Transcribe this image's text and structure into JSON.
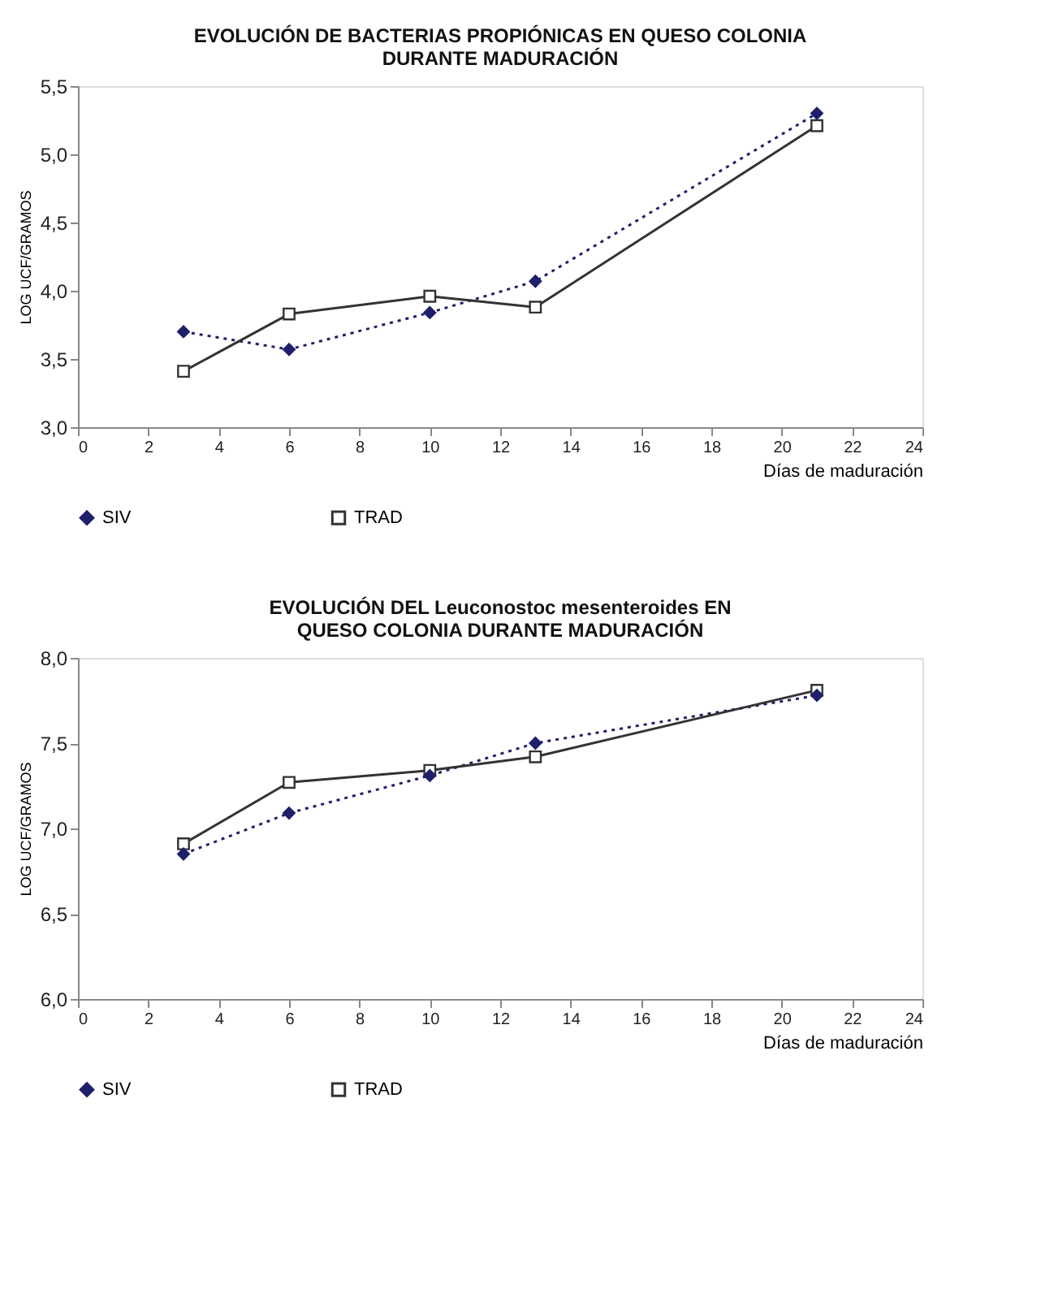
{
  "chart_data": [
    {
      "type": "line",
      "title": "EVOLUCIÓN DE BACTERIAS PROPIÓNICAS EN QUESO COLONIA\nDURANTE MADURACIÓN",
      "xlabel": "Días de maduración",
      "ylabel": "LOG UCF/GRAMOS",
      "x": [
        3,
        6,
        10,
        13,
        21
      ],
      "series": [
        {
          "name": "SIV",
          "color": "#1f1f6b",
          "values": [
            3.7,
            3.57,
            3.84,
            4.07,
            5.3
          ],
          "marker": "diamond",
          "line_style": "dotted"
        },
        {
          "name": "TRAD",
          "color": "#333333",
          "values": [
            3.41,
            3.83,
            3.96,
            3.88,
            5.21
          ],
          "marker": "square",
          "line_style": "solid"
        }
      ],
      "xlim": [
        0,
        24
      ],
      "xticks": [
        0,
        2,
        4,
        6,
        8,
        10,
        12,
        14,
        16,
        18,
        20,
        22,
        24
      ],
      "ylim": [
        3.0,
        5.5
      ],
      "yticks": [
        {
          "value": 3.0,
          "label": "3,0"
        },
        {
          "value": 3.5,
          "label": "3,5"
        },
        {
          "value": 4.0,
          "label": "4,0"
        },
        {
          "value": 4.5,
          "label": "4,5"
        },
        {
          "value": 5.0,
          "label": "5,0"
        },
        {
          "value": 5.5,
          "label": "5,5"
        }
      ],
      "grid": false,
      "legend": "bottom"
    },
    {
      "type": "line",
      "title": "EVOLUCIÓN DEL Leuconostoc mesenteroides EN\nQUESO COLONIA DURANTE MADURACIÓN",
      "xlabel": "Días de maduración",
      "ylabel": "LOG UCF/GRAMOS",
      "x": [
        3,
        6,
        10,
        13,
        21
      ],
      "series": [
        {
          "name": "SIV",
          "color": "#1f1f6b",
          "values": [
            6.85,
            7.09,
            7.31,
            7.5,
            7.78
          ],
          "marker": "diamond",
          "line_style": "dotted"
        },
        {
          "name": "TRAD",
          "color": "#333333",
          "values": [
            6.91,
            7.27,
            7.34,
            7.42,
            7.81
          ],
          "marker": "square",
          "line_style": "solid"
        }
      ],
      "xlim": [
        0,
        24
      ],
      "xticks": [
        0,
        2,
        4,
        6,
        8,
        10,
        12,
        14,
        16,
        18,
        20,
        22,
        24
      ],
      "ylim": [
        6.0,
        8.0
      ],
      "yticks": [
        {
          "value": 6.0,
          "label": "6,0"
        },
        {
          "value": 6.5,
          "label": "6,5"
        },
        {
          "value": 7.0,
          "label": "7,0"
        },
        {
          "value": 7.5,
          "label": "7,5"
        },
        {
          "value": 8.0,
          "label": "8,0"
        }
      ],
      "grid": false,
      "legend": "bottom"
    }
  ]
}
